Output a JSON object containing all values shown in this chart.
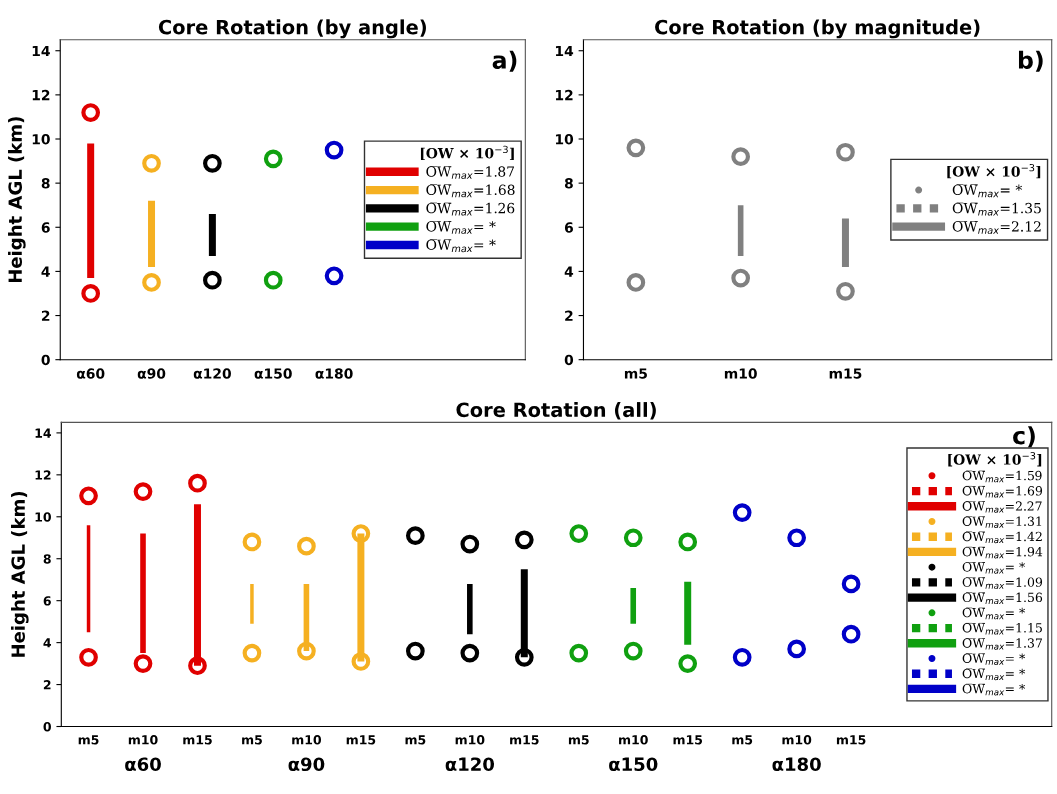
{
  "chart_data": [
    {
      "type": "bar",
      "title": "Core Rotation (by angle)",
      "ylabel": "Height AGL (km)",
      "legend_title": "[OW × 10$^{−3}$]",
      "annotations": [
        "a)"
      ],
      "categories": [
        "α60",
        "α90",
        "α120",
        "α150",
        "α180"
      ],
      "ylim": [
        0,
        14.5
      ],
      "yticks": [
        0,
        2,
        4,
        6,
        8,
        10,
        12,
        14
      ],
      "legend": "right",
      "grid": false,
      "series": [
        {
          "name": "O̅W̅$_{max}$=1.87",
          "color": "#e00000",
          "line_style": "solid",
          "base": [
            3.7,
            null,
            null,
            null,
            null
          ],
          "values": [
            6.1,
            null,
            null,
            null,
            null
          ]
        },
        {
          "name": "O̅W̅$_{max}$=1.68",
          "color": "#f5b021",
          "line_style": "solid",
          "base": [
            null,
            4.2,
            null,
            null,
            null
          ],
          "values": [
            null,
            3.0,
            null,
            null,
            null
          ]
        },
        {
          "name": "O̅W̅$_{max}$=1.26",
          "color": "#000000",
          "line_style": "solid",
          "base": [
            null,
            null,
            4.7,
            null,
            null
          ],
          "values": [
            null,
            null,
            1.9,
            null,
            null
          ]
        },
        {
          "name": "O̅W̅$_{max}$= *",
          "color": "#10a010",
          "line_style": "solid",
          "base": [
            null,
            null,
            null,
            null,
            null
          ],
          "values": [
            null,
            null,
            null,
            null,
            null
          ]
        },
        {
          "name": "O̅W̅$_{max}$= *",
          "color": "#0000c8",
          "line_style": "solid",
          "base": [
            null,
            null,
            null,
            null,
            null
          ],
          "values": [
            null,
            null,
            null,
            null,
            null
          ]
        },
        {
          "type": "scatter",
          "marker": "circle",
          "colors": [
            "#e00000",
            "#f5b021",
            "#000000",
            "#10a010",
            "#0000c8"
          ],
          "values": [
            11.2,
            8.9,
            8.9,
            9.1,
            9.5
          ]
        },
        {
          "type": "scatter",
          "marker": "circle",
          "colors": [
            "#e00000",
            "#f5b021",
            "#000000",
            "#10a010",
            "#0000c8"
          ],
          "values": [
            3.0,
            3.5,
            3.6,
            3.6,
            3.8
          ]
        }
      ]
    },
    {
      "type": "bar",
      "title": "Core Rotation (by magnitude)",
      "legend_title": "[OW × 10$^{−3}$]",
      "annotations": [
        "b)"
      ],
      "categories": [
        "m5",
        "m10",
        "m15"
      ],
      "ylim": [
        0,
        14.5
      ],
      "yticks": [
        0,
        2,
        4,
        6,
        8,
        10,
        12,
        14
      ],
      "legend": "right",
      "grid": false,
      "series": [
        {
          "name": "O̅W̅$_{max}$= *",
          "color": "#808080",
          "line_style": "dotted",
          "base": [
            null,
            null,
            null
          ],
          "values": [
            null,
            null,
            null
          ]
        },
        {
          "name": "O̅W̅$_{max}$=1.35",
          "color": "#808080",
          "line_style": "dashed",
          "base": [
            null,
            4.7,
            null
          ],
          "values": [
            null,
            2.3,
            null
          ]
        },
        {
          "name": "O̅W̅$_{max}$=2.12",
          "color": "#808080",
          "line_style": "solid",
          "base": [
            null,
            null,
            4.2
          ],
          "values": [
            null,
            null,
            2.2
          ]
        },
        {
          "type": "scatter",
          "marker": "circle",
          "colors": [
            "#808080",
            "#808080",
            "#808080"
          ],
          "values": [
            9.6,
            9.2,
            9.4
          ]
        },
        {
          "type": "scatter",
          "marker": "circle",
          "colors": [
            "#808080",
            "#808080",
            "#808080"
          ],
          "values": [
            3.5,
            3.7,
            3.1
          ]
        }
      ]
    },
    {
      "type": "bar",
      "title": "Core Rotation (all)",
      "ylabel": "Height AGL (km)",
      "legend_title": "[OW × 10$^{−3}$]",
      "annotations": [
        "c)",
        "α60",
        "α90",
        "α120",
        "α150",
        "α180"
      ],
      "categories": [
        "m5",
        "m10",
        "m15",
        "m5",
        "m10",
        "m15",
        "m5",
        "m10",
        "m15",
        "m5",
        "m10",
        "m15",
        "m5",
        "m10",
        "m15"
      ],
      "ylim": [
        0,
        14.5
      ],
      "yticks": [
        0,
        2,
        4,
        6,
        8,
        10,
        12,
        14
      ],
      "legend": "right",
      "grid": false,
      "series": [
        {
          "name": "O̅W̅$_{max}$=1.59",
          "color": "#e00000",
          "line_style": "dotted",
          "base": [
            4.5,
            null,
            null,
            null,
            null,
            null,
            null,
            null,
            null,
            null,
            null,
            null,
            null,
            null,
            null
          ],
          "values": [
            5.1,
            null,
            null,
            null,
            null,
            null,
            null,
            null,
            null,
            null,
            null,
            null,
            null,
            null,
            null
          ]
        },
        {
          "name": "O̅W̅$_{max}$=1.69",
          "color": "#e00000",
          "line_style": "dashed",
          "base": [
            null,
            3.5,
            null,
            null,
            null,
            null,
            null,
            null,
            null,
            null,
            null,
            null,
            null,
            null,
            null
          ],
          "values": [
            null,
            5.7,
            null,
            null,
            null,
            null,
            null,
            null,
            null,
            null,
            null,
            null,
            null,
            null,
            null
          ]
        },
        {
          "name": "O̅W̅$_{max}$=2.27",
          "color": "#e00000",
          "line_style": "solid",
          "base": [
            null,
            null,
            2.9,
            null,
            null,
            null,
            null,
            null,
            null,
            null,
            null,
            null,
            null,
            null,
            null
          ],
          "values": [
            null,
            null,
            7.7,
            null,
            null,
            null,
            null,
            null,
            null,
            null,
            null,
            null,
            null,
            null,
            null
          ]
        },
        {
          "name": "O̅W̅$_{max}$=1.31",
          "color": "#f5b021",
          "line_style": "dotted",
          "base": [
            null,
            null,
            null,
            4.9,
            null,
            null,
            null,
            null,
            null,
            null,
            null,
            null,
            null,
            null,
            null
          ],
          "values": [
            null,
            null,
            null,
            1.9,
            null,
            null,
            null,
            null,
            null,
            null,
            null,
            null,
            null,
            null,
            null
          ]
        },
        {
          "name": "O̅W̅$_{max}$=1.42",
          "color": "#f5b021",
          "line_style": "dashed",
          "base": [
            null,
            null,
            null,
            null,
            3.6,
            null,
            null,
            null,
            null,
            null,
            null,
            null,
            null,
            null,
            null
          ],
          "values": [
            null,
            null,
            null,
            null,
            3.2,
            null,
            null,
            null,
            null,
            null,
            null,
            null,
            null,
            null,
            null
          ]
        },
        {
          "name": "O̅W̅$_{max}$=1.94",
          "color": "#f5b021",
          "line_style": "solid",
          "base": [
            null,
            null,
            null,
            null,
            null,
            3.1,
            null,
            null,
            null,
            null,
            null,
            null,
            null,
            null,
            null
          ],
          "values": [
            null,
            null,
            null,
            null,
            null,
            6.1,
            null,
            null,
            null,
            null,
            null,
            null,
            null,
            null,
            null
          ]
        },
        {
          "name": "O̅W̅$_{max}$= *",
          "color": "#000000",
          "line_style": "dotted",
          "base": [
            null,
            null,
            null,
            null,
            null,
            null,
            null,
            null,
            null,
            null,
            null,
            null,
            null,
            null,
            null
          ],
          "values": [
            null,
            null,
            null,
            null,
            null,
            null,
            null,
            null,
            null,
            null,
            null,
            null,
            null,
            null,
            null
          ]
        },
        {
          "name": "O̅W̅$_{max}$=1.09",
          "color": "#000000",
          "line_style": "dashed",
          "base": [
            null,
            null,
            null,
            null,
            null,
            null,
            null,
            4.4,
            null,
            null,
            null,
            null,
            null,
            null,
            null
          ],
          "values": [
            null,
            null,
            null,
            null,
            null,
            null,
            null,
            2.4,
            null,
            null,
            null,
            null,
            null,
            null,
            null
          ]
        },
        {
          "name": "O̅W̅$_{max}$=1.56",
          "color": "#000000",
          "line_style": "solid",
          "base": [
            null,
            null,
            null,
            null,
            null,
            null,
            null,
            null,
            3.3,
            null,
            null,
            null,
            null,
            null,
            null
          ],
          "values": [
            null,
            null,
            null,
            null,
            null,
            null,
            null,
            null,
            4.2,
            null,
            null,
            null,
            null,
            null,
            null
          ]
        },
        {
          "name": "O̅W̅$_{max}$= *",
          "color": "#10a010",
          "line_style": "dotted",
          "base": [
            null,
            null,
            null,
            null,
            null,
            null,
            null,
            null,
            null,
            null,
            null,
            null,
            null,
            null,
            null
          ],
          "values": [
            null,
            null,
            null,
            null,
            null,
            null,
            null,
            null,
            null,
            null,
            null,
            null,
            null,
            null,
            null
          ]
        },
        {
          "name": "O̅W̅$_{max}$=1.15",
          "color": "#10a010",
          "line_style": "dashed",
          "base": [
            null,
            null,
            null,
            null,
            null,
            null,
            null,
            null,
            null,
            null,
            4.9,
            null,
            null,
            null,
            null
          ],
          "values": [
            null,
            null,
            null,
            null,
            null,
            null,
            null,
            null,
            null,
            null,
            1.7,
            null,
            null,
            null,
            null
          ]
        },
        {
          "name": "O̅W̅$_{max}$=1.37",
          "color": "#10a010",
          "line_style": "solid",
          "base": [
            null,
            null,
            null,
            null,
            null,
            null,
            null,
            null,
            null,
            null,
            null,
            3.9,
            null,
            null,
            null
          ],
          "values": [
            null,
            null,
            null,
            null,
            null,
            null,
            null,
            null,
            null,
            null,
            null,
            3.0,
            null,
            null,
            null
          ]
        },
        {
          "name": "O̅W̅$_{max}$= *",
          "color": "#0000c8",
          "line_style": "dotted",
          "base": [
            null,
            null,
            null,
            null,
            null,
            null,
            null,
            null,
            null,
            null,
            null,
            null,
            null,
            null,
            null
          ],
          "values": [
            null,
            null,
            null,
            null,
            null,
            null,
            null,
            null,
            null,
            null,
            null,
            null,
            null,
            null,
            null
          ]
        },
        {
          "name": "O̅W̅$_{max}$= *",
          "color": "#0000c8",
          "line_style": "dashed",
          "base": [
            null,
            null,
            null,
            null,
            null,
            null,
            null,
            null,
            null,
            null,
            null,
            null,
            null,
            null,
            null
          ],
          "values": [
            null,
            null,
            null,
            null,
            null,
            null,
            null,
            null,
            null,
            null,
            null,
            null,
            null,
            null,
            null
          ]
        },
        {
          "name": "O̅W̅$_{max}$= *",
          "color": "#0000c8",
          "line_style": "solid",
          "base": [
            null,
            null,
            null,
            null,
            null,
            null,
            null,
            null,
            null,
            null,
            null,
            null,
            null,
            null,
            null
          ],
          "values": [
            null,
            null,
            null,
            null,
            null,
            null,
            null,
            null,
            null,
            null,
            null,
            null,
            null,
            null,
            null
          ]
        },
        {
          "type": "scatter",
          "marker": "circle",
          "colors": [
            "#e00000",
            "#e00000",
            "#e00000",
            "#f5b021",
            "#f5b021",
            "#f5b021",
            "#000000",
            "#000000",
            "#000000",
            "#10a010",
            "#10a010",
            "#10a010",
            "#0000c8",
            "#0000c8",
            "#0000c8"
          ],
          "values": [
            11.0,
            11.2,
            11.6,
            8.8,
            8.6,
            9.2,
            9.1,
            8.7,
            8.9,
            9.2,
            9.0,
            8.8,
            10.2,
            9.0,
            6.8
          ]
        },
        {
          "type": "scatter",
          "marker": "circle",
          "colors": [
            "#e00000",
            "#e00000",
            "#e00000",
            "#f5b021",
            "#f5b021",
            "#f5b021",
            "#000000",
            "#000000",
            "#000000",
            "#10a010",
            "#10a010",
            "#10a010",
            "#0000c8",
            "#0000c8",
            "#0000c8"
          ],
          "values": [
            3.3,
            3.0,
            2.9,
            3.5,
            3.6,
            3.1,
            3.6,
            3.5,
            3.3,
            3.5,
            3.6,
            3.0,
            3.3,
            3.7,
            4.4
          ]
        }
      ]
    }
  ]
}
